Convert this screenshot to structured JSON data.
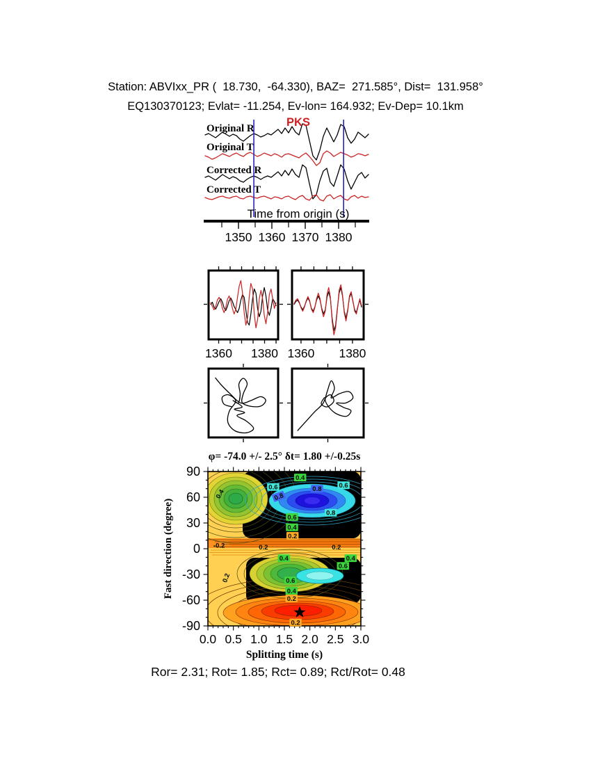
{
  "header": {
    "line1": "Station: ABVIxx_PR (  18.730,  -64.330), BAZ=  271.585°, Dist=  131.958°",
    "line2": "EQ130370123; Evlat= -11.254, Ev-lon= 164.932; Ev-Dep= 10.1km"
  },
  "results_line": "Ror= 2.31; Rot= 1.85; Rct= 0.89; Rct/Rot= 0.48",
  "colors": {
    "trace_r": "#000000",
    "trace_t": "#cc2222",
    "window_marker": "#2626bb",
    "chip_green": "#3dd53d",
    "chip_cyan": "#43e6df",
    "chip_blue": "#4565f5",
    "chip_orange": "#ffa928"
  },
  "chart_data": {
    "seismogram_panel": {
      "type": "line",
      "xlabel": "Time from origin (s)",
      "xticks": [
        1350,
        1360,
        1370,
        1380
      ],
      "xminor": [
        1345,
        1355,
        1365,
        1375,
        1385
      ],
      "xrange": [
        1340,
        1389
      ],
      "phase_label": "PKS",
      "phase_color": "#cc2222",
      "window_markers": [
        1354.6,
        1381.5
      ],
      "traces": [
        {
          "name": "Original R",
          "color": "#000000",
          "baseline": 196,
          "samples": [
            2,
            4,
            1,
            -2,
            2,
            6,
            3,
            0,
            3,
            1,
            -4,
            -7,
            -3,
            1,
            4,
            2,
            -1,
            1,
            4,
            2,
            6,
            10,
            4,
            12,
            5,
            14,
            6,
            2,
            18,
            16,
            -6,
            -28,
            -34,
            -20,
            0,
            12,
            2,
            -8,
            2,
            17,
            14,
            -2,
            -10,
            -4,
            6,
            2,
            -2,
            3
          ]
        },
        {
          "name": "Original T",
          "color": "#cc2222",
          "baseline": 223,
          "samples": [
            -1,
            -3,
            -6,
            -4,
            -1,
            2,
            0,
            -2,
            1,
            3,
            0,
            -2,
            2,
            4,
            1,
            -2,
            0,
            3,
            1,
            -1,
            2,
            0,
            -3,
            1,
            2,
            0,
            -2,
            -4,
            0,
            3,
            -2,
            -8,
            -15,
            -11,
            2,
            6,
            3,
            -2,
            1,
            4,
            2,
            0,
            -3,
            -1,
            2,
            1,
            -1,
            1
          ]
        },
        {
          "name": "Corrected R",
          "color": "#000000",
          "baseline": 256,
          "samples": [
            1,
            3,
            0,
            -3,
            1,
            5,
            2,
            -1,
            2,
            0,
            -4,
            -6,
            -2,
            1,
            3,
            1,
            -2,
            1,
            3,
            1,
            5,
            9,
            3,
            11,
            4,
            13,
            5,
            1,
            19,
            15,
            -8,
            -30,
            -24,
            -4,
            10,
            14,
            -6,
            -12,
            3,
            19,
            13,
            -4,
            -16,
            -6,
            4,
            8,
            0,
            5
          ]
        },
        {
          "name": "Corrected T",
          "color": "#cc2222",
          "baseline": 284,
          "samples": [
            0,
            -2,
            -3,
            -1,
            1,
            2,
            0,
            -1,
            1,
            2,
            -1,
            -2,
            1,
            2,
            0,
            -1,
            1,
            2,
            0,
            -2,
            1,
            0,
            -2,
            1,
            2,
            -1,
            -3,
            1,
            3,
            -2,
            -4,
            2,
            4,
            -3,
            -5,
            2,
            4,
            -2,
            1,
            3,
            -2,
            -4,
            1,
            3,
            -1,
            2,
            0,
            1
          ]
        }
      ]
    },
    "window_panels": [
      {
        "name": "uncorrected-window",
        "xticks": [
          1360,
          1380
        ],
        "traces": [
          {
            "color": "#000000",
            "samples": [
              0,
              3,
              -4,
              -7,
              -2,
              4,
              8,
              3,
              -5,
              -9,
              -3,
              5,
              9,
              4,
              -3,
              -8,
              -12,
              -6,
              6,
              14,
              10,
              -8,
              -26,
              -30,
              -14,
              8,
              22,
              16,
              -6,
              -18,
              -10,
              12,
              24,
              12,
              -8,
              -16,
              -6,
              8,
              4,
              -2
            ]
          },
          {
            "color": "#cc2222",
            "samples": [
              2,
              -3,
              -8,
              -3,
              6,
              10,
              4,
              -6,
              -12,
              -5,
              7,
              12,
              5,
              -6,
              -14,
              -7,
              10,
              26,
              34,
              16,
              -12,
              -30,
              -20,
              10,
              30,
              22,
              -14,
              -34,
              -22,
              8,
              20,
              8,
              -16,
              -28,
              -12,
              14,
              22,
              8,
              -6,
              2
            ]
          }
        ]
      },
      {
        "name": "corrected-window",
        "xticks": [
          1360,
          1380
        ],
        "traces": [
          {
            "color": "#000000",
            "samples": [
              0,
              4,
              6,
              2,
              -4,
              -8,
              -3,
              4,
              9,
              4,
              -6,
              -10,
              -4,
              6,
              12,
              6,
              -6,
              -14,
              -8,
              10,
              18,
              8,
              -20,
              -38,
              -30,
              -6,
              16,
              24,
              12,
              -10,
              -20,
              -8,
              10,
              16,
              4,
              -8,
              -12,
              -2,
              6,
              -4
            ]
          },
          {
            "color": "#cc2222",
            "samples": [
              1,
              6,
              8,
              3,
              -5,
              -10,
              -4,
              5,
              11,
              5,
              -7,
              -12,
              -5,
              8,
              16,
              8,
              -8,
              -18,
              -10,
              14,
              24,
              10,
              -24,
              -44,
              -34,
              -8,
              20,
              28,
              14,
              -12,
              -24,
              -10,
              12,
              18,
              5,
              -10,
              -14,
              -3,
              8,
              -2
            ]
          }
        ]
      }
    ],
    "particle_panels": [
      {
        "name": "particle-motion-original",
        "points": [
          [
            0.06,
            0.1
          ],
          [
            0.16,
            0.22
          ],
          [
            0.3,
            0.36
          ],
          [
            0.46,
            0.5
          ],
          [
            0.62,
            0.46
          ],
          [
            0.77,
            0.4
          ],
          [
            0.85,
            0.46
          ],
          [
            0.77,
            0.55
          ],
          [
            0.6,
            0.55
          ],
          [
            0.48,
            0.49
          ],
          [
            0.5,
            0.35
          ],
          [
            0.56,
            0.2
          ],
          [
            0.5,
            0.11
          ],
          [
            0.43,
            0.2
          ],
          [
            0.45,
            0.36
          ],
          [
            0.42,
            0.5
          ],
          [
            0.34,
            0.46
          ],
          [
            0.48,
            0.56
          ],
          [
            0.36,
            0.6
          ],
          [
            0.52,
            0.65
          ],
          [
            0.4,
            0.7
          ],
          [
            0.54,
            0.78
          ],
          [
            0.66,
            0.9
          ],
          [
            0.55,
            0.97
          ],
          [
            0.37,
            0.94
          ],
          [
            0.26,
            0.81
          ],
          [
            0.28,
            0.63
          ],
          [
            0.38,
            0.47
          ],
          [
            0.27,
            0.37
          ],
          [
            0.17,
            0.41
          ],
          [
            0.2,
            0.52
          ],
          [
            0.33,
            0.56
          ]
        ]
      },
      {
        "name": "particle-motion-corrected",
        "points": [
          [
            0.04,
            0.94
          ],
          [
            0.16,
            0.8
          ],
          [
            0.3,
            0.64
          ],
          [
            0.43,
            0.5
          ],
          [
            0.49,
            0.32
          ],
          [
            0.55,
            0.15
          ],
          [
            0.6,
            0.27
          ],
          [
            0.55,
            0.42
          ],
          [
            0.68,
            0.35
          ],
          [
            0.82,
            0.32
          ],
          [
            0.88,
            0.42
          ],
          [
            0.77,
            0.5
          ],
          [
            0.63,
            0.5
          ],
          [
            0.74,
            0.57
          ],
          [
            0.85,
            0.62
          ],
          [
            0.78,
            0.71
          ],
          [
            0.63,
            0.67
          ],
          [
            0.52,
            0.57
          ],
          [
            0.46,
            0.44
          ],
          [
            0.54,
            0.37
          ],
          [
            0.59,
            0.47
          ],
          [
            0.49,
            0.56
          ],
          [
            0.4,
            0.51
          ],
          [
            0.45,
            0.41
          ]
        ]
      }
    ],
    "contour_panel": {
      "type": "heatmap",
      "title": "φ= -74.0 +/- 2.5° δt= 1.80 +/-0.25s",
      "best_fit": {
        "phi": -74.0,
        "phi_err": 2.5,
        "dt": 1.8,
        "dt_err": 0.25
      },
      "xlabel": "Splitting time (s)",
      "ylabel": "Fast direction (degree)",
      "xtick_labels": [
        "0.0",
        "0.5",
        "1.0",
        "1.5",
        "2.0",
        "2.5",
        "3.0"
      ],
      "xticks": [
        0,
        0.5,
        1,
        1.5,
        2,
        2.5,
        3
      ],
      "yticks": [
        90,
        60,
        30,
        0,
        -30,
        -60,
        -90
      ],
      "xrange": [
        0,
        3
      ],
      "yrange": [
        -90,
        90
      ],
      "star": {
        "t": 1.8,
        "phi": -74
      },
      "contour_labels": [
        {
          "t": 1.81,
          "phi": 83,
          "text": "0.4",
          "style": "green"
        },
        {
          "t": 2.14,
          "phi": 70,
          "text": "0.8",
          "style": "blue"
        },
        {
          "t": 2.66,
          "phi": 74,
          "text": "0.6",
          "style": "cyan"
        },
        {
          "t": 1.28,
          "phi": 72,
          "text": "0.6",
          "style": "cyan"
        },
        {
          "t": 1.39,
          "phi": 61,
          "text": "0.8",
          "style": "blue",
          "rot": -20
        },
        {
          "t": 0.23,
          "phi": 64,
          "text": "0.4",
          "style": "plain",
          "rot": -60
        },
        {
          "t": 2.41,
          "phi": 42,
          "text": "0.8",
          "style": "cyan"
        },
        {
          "t": 1.65,
          "phi": 37,
          "text": "0.6",
          "style": "green"
        },
        {
          "t": 1.65,
          "phi": 25,
          "text": "0.4",
          "style": "green"
        },
        {
          "t": 1.66,
          "phi": 15,
          "text": "0.2",
          "style": "orange"
        },
        {
          "t": 0.22,
          "phi": 4,
          "text": "-0.2",
          "style": "plain"
        },
        {
          "t": 1.09,
          "phi": 2,
          "text": "0.2",
          "style": "plain"
        },
        {
          "t": 2.52,
          "phi": 2,
          "text": "0.2",
          "style": "plain"
        },
        {
          "t": 1.49,
          "phi": -11,
          "text": "0.4",
          "style": "green"
        },
        {
          "t": 2.8,
          "phi": -11,
          "text": "0.4",
          "style": "green"
        },
        {
          "t": 2.65,
          "phi": -20,
          "text": "0.6",
          "style": "green"
        },
        {
          "t": 1.62,
          "phi": -37,
          "text": "0.6",
          "style": "green"
        },
        {
          "t": 1.64,
          "phi": -49,
          "text": "0.4",
          "style": "green"
        },
        {
          "t": 1.64,
          "phi": -58,
          "text": "0.2",
          "style": "orange"
        },
        {
          "t": 0.35,
          "phi": -34,
          "text": "0.2",
          "style": "plain",
          "rot": -70
        },
        {
          "t": 1.72,
          "phi": -86,
          "text": "0.2",
          "style": "orange"
        }
      ],
      "splitting_ratios": {
        "Ror": 2.31,
        "Rot": 1.85,
        "Rct": 0.89,
        "Rct_Rot": 0.48
      }
    }
  }
}
